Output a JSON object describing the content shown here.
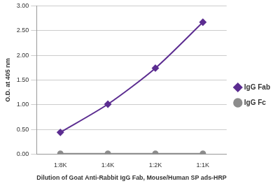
{
  "chart_data": {
    "type": "line",
    "x_label": "Dilution of Goat Anti-Rabbit IgG Fab, Mouse/Human SP ads-HRP",
    "y_label": "O.D. at 405 nm",
    "categories": [
      "1:8K",
      "1:4K",
      "1:2K",
      "1:1K"
    ],
    "series": [
      {
        "name": "IgG Fab",
        "color": "#5c2d91",
        "marker": "diamond",
        "values": [
          0.44,
          1.01,
          1.74,
          2.67
        ]
      },
      {
        "name": "IgG Fc",
        "color": "#8c8c8c",
        "marker": "circle",
        "values": [
          0.01,
          0.01,
          0.01,
          0.01
        ]
      }
    ],
    "ylim": [
      0,
      3
    ],
    "yticks": [
      {
        "value": 0,
        "label": "0.00"
      },
      {
        "value": 0.5,
        "label": "0.50"
      },
      {
        "value": 1,
        "label": "1.00"
      },
      {
        "value": 1.5,
        "label": "1.50"
      },
      {
        "value": 2,
        "label": "2.00"
      },
      {
        "value": 2.5,
        "label": "2.50"
      },
      {
        "value": 3,
        "label": "3.00"
      }
    ],
    "grid": true,
    "legend": "right"
  }
}
